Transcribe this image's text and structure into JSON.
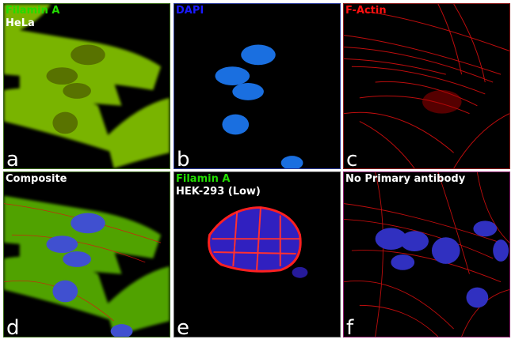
{
  "panels": [
    {
      "letter": "a",
      "labels": [
        {
          "text": "Filamin A",
          "color": "#22dd00"
        },
        {
          "text": "HeLa",
          "color": "#ffffff"
        }
      ]
    },
    {
      "letter": "b",
      "labels": [
        {
          "text": "DAPI",
          "color": "#1a1aff"
        }
      ]
    },
    {
      "letter": "c",
      "labels": [
        {
          "text": "F-Actin",
          "color": "#ff1010"
        }
      ]
    },
    {
      "letter": "d",
      "labels": [
        {
          "text": "Composite",
          "color": "#ffffff"
        }
      ]
    },
    {
      "letter": "e",
      "labels": [
        {
          "text": "Filamin A",
          "color": "#22dd00"
        },
        {
          "text": "HEK-293 (Low)",
          "color": "#ffffff"
        }
      ]
    },
    {
      "letter": "f",
      "labels": [
        {
          "text": "No Primary antibody",
          "color": "#ffffff"
        }
      ]
    }
  ]
}
